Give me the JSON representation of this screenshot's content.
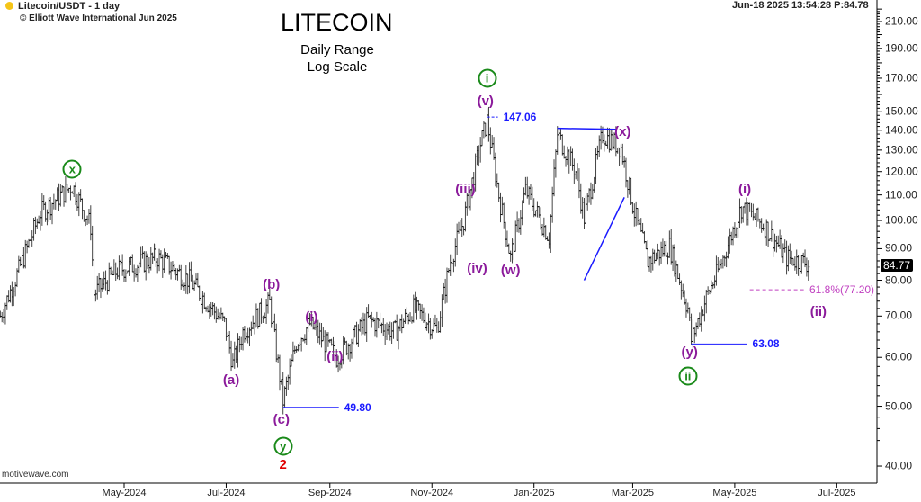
{
  "header": {
    "symbol": "Litecoin/USDT - 1 day",
    "copyright": "© Elliott Wave International Jun 2025",
    "status": "Jun-18 2025  13:54:28  P:84.78",
    "watermark": "motivewave.com"
  },
  "chart_data": {
    "type": "ohlc",
    "title": "LITECOIN",
    "subtitle1": "Daily Range",
    "subtitle2": "Log Scale",
    "yscale": "log",
    "ylim": [
      38,
      225
    ],
    "xlim": [
      "2024-02-17",
      "2025-07-15"
    ],
    "y_ticks": [
      "210.00",
      "190.00",
      "170.00",
      "150.00",
      "140.00",
      "130.00",
      "120.00",
      "110.00",
      "100.00",
      "90.00",
      "80.00",
      "70.00",
      "60.00",
      "50.00",
      "40.00"
    ],
    "x_ticks": [
      {
        "label": "May-2024",
        "date": "2024-05-01"
      },
      {
        "label": "Jul-2024",
        "date": "2024-07-01"
      },
      {
        "label": "Sep-2024",
        "date": "2024-09-01"
      },
      {
        "label": "Nov-2024",
        "date": "2024-11-01"
      },
      {
        "label": "Jan-2025",
        "date": "2025-01-01"
      },
      {
        "label": "Mar-2025",
        "date": "2025-03-01"
      },
      {
        "label": "May-2025",
        "date": "2025-05-01"
      },
      {
        "label": "Jul-2025",
        "date": "2025-07-01"
      }
    ],
    "last_price": "84.77",
    "price_path": [
      [
        "2024-02-17",
        70
      ],
      [
        "2024-02-28",
        83
      ],
      [
        "2024-03-12",
        103
      ],
      [
        "2024-03-31",
        114
      ],
      [
        "2024-04-11",
        98
      ],
      [
        "2024-04-13",
        76
      ],
      [
        "2024-04-27",
        83
      ],
      [
        "2024-05-21",
        87
      ],
      [
        "2024-06-09",
        80
      ],
      [
        "2024-06-30",
        68
      ],
      [
        "2024-07-05",
        58.5
      ],
      [
        "2024-07-11",
        66
      ],
      [
        "2024-07-27",
        73.5
      ],
      [
        "2024-08-04",
        51
      ],
      [
        "2024-08-12",
        63.5
      ],
      [
        "2024-08-20",
        68
      ],
      [
        "2024-09-05",
        60
      ],
      [
        "2024-09-24",
        69
      ],
      [
        "2024-10-10",
        66
      ],
      [
        "2024-10-21",
        72
      ],
      [
        "2024-11-04",
        66.5
      ],
      [
        "2024-11-12",
        86
      ],
      [
        "2024-11-20",
        100
      ],
      [
        "2024-11-30",
        133
      ],
      [
        "2024-12-04",
        145
      ],
      [
        "2024-12-11",
        110
      ],
      [
        "2024-12-18",
        87
      ],
      [
        "2024-12-27",
        112
      ],
      [
        "2025-01-10",
        94
      ],
      [
        "2025-01-15",
        138
      ],
      [
        "2025-01-26",
        120
      ],
      [
        "2025-01-31",
        101
      ],
      [
        "2025-02-11",
        138
      ],
      [
        "2025-02-22",
        131
      ],
      [
        "2025-03-02",
        103
      ],
      [
        "2025-03-10",
        86
      ],
      [
        "2025-03-23",
        91
      ],
      [
        "2025-04-03",
        72
      ],
      [
        "2025-04-05",
        64
      ],
      [
        "2025-04-14",
        75
      ],
      [
        "2025-04-22",
        84
      ],
      [
        "2025-05-05",
        105
      ],
      [
        "2025-05-19",
        98
      ],
      [
        "2025-06-01",
        87
      ],
      [
        "2025-06-15",
        85
      ]
    ],
    "annotations": {
      "circled": [
        {
          "text": "x",
          "date": "2024-03-31",
          "price": 121
        },
        {
          "text": "i",
          "date": "2024-12-04",
          "price": 170
        },
        {
          "text": "y",
          "date": "2024-08-04",
          "price": 43
        },
        {
          "text": "ii",
          "date": "2025-04-03",
          "price": 56
        }
      ],
      "waves": [
        {
          "text": "(v)",
          "date": "2024-12-03",
          "price": 156
        },
        {
          "text": "(iii)",
          "date": "2024-11-21",
          "price": 112
        },
        {
          "text": "(iv)",
          "date": "2024-11-28",
          "price": 83.5
        },
        {
          "text": "(w)",
          "date": "2024-12-18",
          "price": 83
        },
        {
          "text": "(x)",
          "date": "2025-02-23",
          "price": 139
        },
        {
          "text": "(b)",
          "date": "2024-07-28",
          "price": 78.5
        },
        {
          "text": "(a)",
          "date": "2024-07-04",
          "price": 55
        },
        {
          "text": "(c)",
          "date": "2024-08-03",
          "price": 47.5
        },
        {
          "text": "(i)",
          "date": "2024-08-21",
          "price": 69.5
        },
        {
          "text": "(ii)",
          "date": "2024-09-04",
          "price": 60
        },
        {
          "text": "(y)",
          "date": "2025-04-04",
          "price": 61
        },
        {
          "text": "(i)",
          "date": "2025-05-07",
          "price": 112
        },
        {
          "text": "(ii)",
          "date": "2025-06-20",
          "price": 71
        }
      ],
      "red_label": {
        "text": "2",
        "date": "2024-08-04",
        "price": 41.5
      },
      "levels": [
        {
          "text": "147.06",
          "price": 147.06,
          "from": "2024-12-04"
        },
        {
          "text": "49.80",
          "price": 49.8,
          "from": "2024-08-04"
        },
        {
          "text": "63.08",
          "price": 63.08,
          "from": "2025-04-05"
        }
      ],
      "fib": {
        "text": "61.8%(77.20)",
        "price": 77.2,
        "from": "2025-05-10"
      },
      "wedge": [
        {
          "from": [
            "2025-01-15",
            141
          ],
          "to": [
            "2025-02-19",
            140.5
          ]
        },
        {
          "from": [
            "2025-01-31",
            80
          ],
          "to": [
            "2025-02-24",
            109
          ]
        }
      ]
    }
  },
  "colors": {
    "wave": "#8b1a9b",
    "circle": "#1a8a1a",
    "level": "#1a1aff",
    "fib": "#c040c0",
    "red": "#e00000",
    "bar": "#444444"
  }
}
